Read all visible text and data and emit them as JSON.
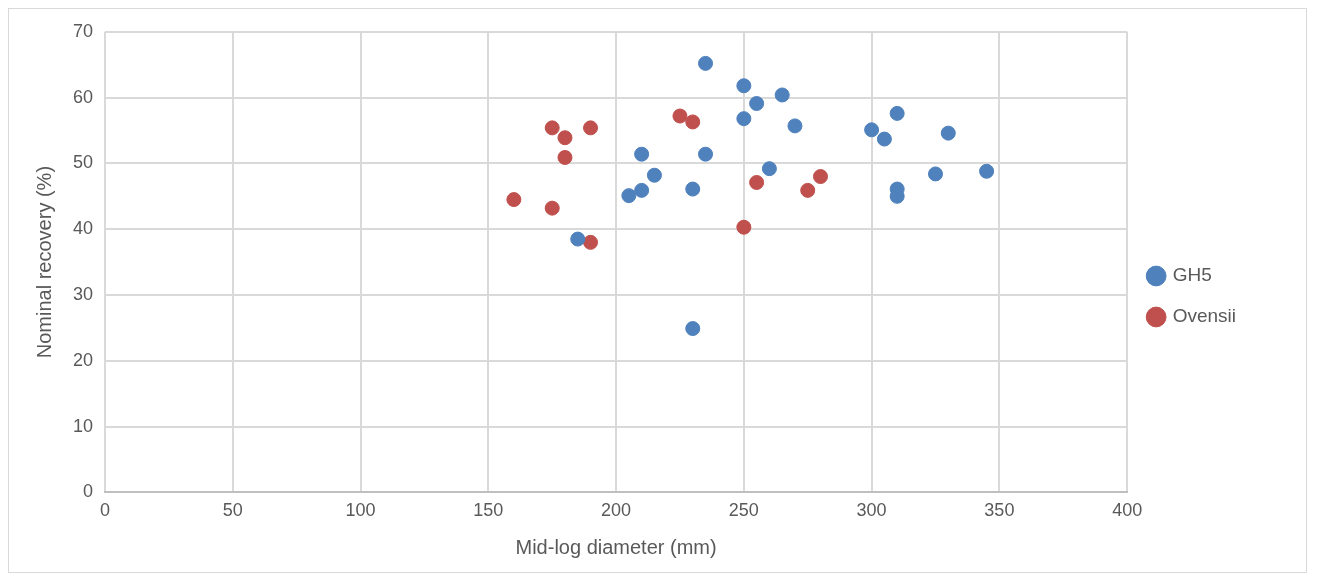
{
  "chart_data": {
    "type": "scatter",
    "xlabel": "Mid-log diameter (mm)",
    "ylabel": "Nominal recovery (%)",
    "xlim": [
      0,
      400
    ],
    "xticks": [
      0,
      50,
      100,
      150,
      200,
      250,
      300,
      350,
      400
    ],
    "ylim": [
      0,
      70
    ],
    "yticks": [
      0,
      10,
      20,
      30,
      40,
      50,
      60,
      70
    ],
    "grid": true,
    "legend": "right",
    "marker": "circle",
    "series": [
      {
        "name": "GH5",
        "color": "#4f81bd",
        "x": [
          235,
          250,
          255,
          265,
          250,
          270,
          300,
          305,
          310,
          330,
          210,
          235,
          215,
          260,
          210,
          205,
          230,
          185,
          230,
          310,
          310,
          325,
          345
        ],
        "values": [
          65.2,
          61.8,
          59.1,
          60.4,
          56.8,
          55.7,
          55.1,
          53.7,
          57.6,
          54.6,
          51.4,
          51.4,
          48.2,
          49.2,
          45.9,
          45.1,
          46.1,
          38.5,
          24.9,
          46.1,
          45.0,
          48.4,
          48.8
        ]
      },
      {
        "name": "Ovensii",
        "color": "#c0504d",
        "x": [
          175,
          190,
          180,
          180,
          160,
          175,
          190,
          225,
          230,
          255,
          275,
          280,
          250
        ],
        "values": [
          55.4,
          55.4,
          53.9,
          50.9,
          44.5,
          43.2,
          38.0,
          57.2,
          56.3,
          47.1,
          45.9,
          48.0,
          40.3
        ]
      }
    ]
  }
}
